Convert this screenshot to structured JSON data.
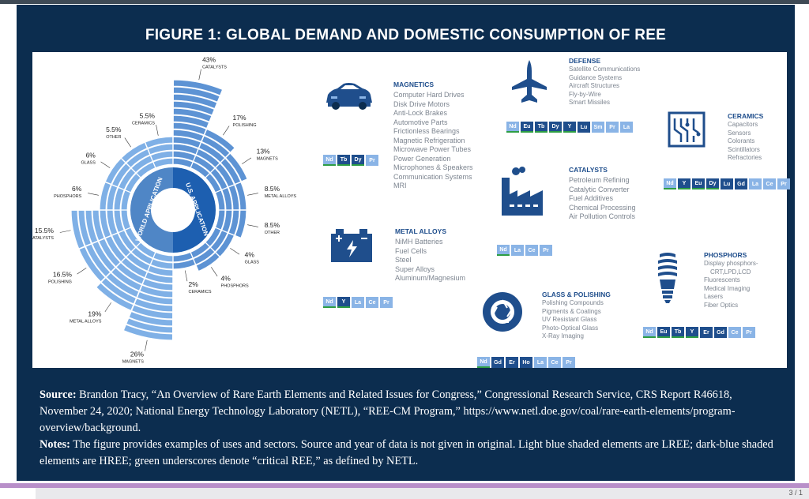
{
  "title": "FIGURE 1: GLOBAL DEMAND AND DOMESTIC CONSUMPTION OF REE",
  "ring": {
    "world_label": "WORLD APPLICATION",
    "us_label": "U.S. APPLICATION",
    "world": [
      {
        "pct": "26%",
        "name": "MAGNETS",
        "value": 26
      },
      {
        "pct": "19%",
        "name": "METAL ALLOYS",
        "value": 19
      },
      {
        "pct": "16.5%",
        "name": "POLISHING",
        "value": 16.5
      },
      {
        "pct": "15.5%",
        "name": "CATALYSTS",
        "value": 15.5
      },
      {
        "pct": "6%",
        "name": "PHOSPHORS",
        "value": 6
      },
      {
        "pct": "6%",
        "name": "GLASS",
        "value": 6
      },
      {
        "pct": "5.5%",
        "name": "OTHER",
        "value": 5.5
      },
      {
        "pct": "5.5%",
        "name": "CERAMICS",
        "value": 5.5
      }
    ],
    "us": [
      {
        "pct": "43%",
        "name": "CATALYSTS",
        "value": 43
      },
      {
        "pct": "17%",
        "name": "POLISHING",
        "value": 17
      },
      {
        "pct": "13%",
        "name": "MAGNETS",
        "value": 13
      },
      {
        "pct": "8.5%",
        "name": "METAL ALLOYS",
        "value": 8.5
      },
      {
        "pct": "8.5%",
        "name": "OTHER",
        "value": 8.5
      },
      {
        "pct": "4%",
        "name": "GLASS",
        "value": 4
      },
      {
        "pct": "4%",
        "name": "PHOSPHORS",
        "value": 4
      },
      {
        "pct": "2%",
        "name": "CERAMICS",
        "value": 2
      }
    ]
  },
  "sections": {
    "magnetics": {
      "title": "MAGNETICS",
      "items": [
        "Computer Hard Drives",
        "Disk Drive Motors",
        "Anti-Lock Brakes",
        "Automotive Parts",
        "Frictionless Bearings",
        "Magnetic Refrigeration",
        "Microwave Power Tubes",
        "Power Generation",
        "Microphones & Speakers",
        "Communication Systems",
        "MRI"
      ],
      "elements": [
        "Nd",
        "Tb",
        "Dy",
        "Pr"
      ]
    },
    "metal_alloys": {
      "title": "METAL ALLOYS",
      "items": [
        "NiMH Batteries",
        "Fuel Cells",
        "Steel",
        "Super Alloys",
        "Aluminum/Magnesium"
      ],
      "elements": [
        "Nd",
        "Y",
        "La",
        "Ce",
        "Pr"
      ]
    },
    "defense": {
      "title": "DEFENSE",
      "items": [
        "Satellite Communications",
        "Guidance Systems",
        "Aircraft Structures",
        "Fly-by-Wire",
        "Smart Missiles"
      ],
      "elements": [
        "Nd",
        "Eu",
        "Tb",
        "Dy",
        "Y",
        "Lu",
        "Sm",
        "Pr",
        "La"
      ]
    },
    "catalysts": {
      "title": "CATALYSTS",
      "items": [
        "Petroleum Refining",
        "Catalytic Converter",
        "Fuel Additives",
        "Chemical Processing",
        "Air Pollution Controls"
      ],
      "elements": [
        "Nd",
        "La",
        "Ce",
        "Pr"
      ]
    },
    "glass": {
      "title": "GLASS & POLISHING",
      "items": [
        "Polishing Compounds",
        "Pigments & Coatings",
        "UV Resistant Glass",
        "Photo-Optical Glass",
        "X-Ray Imaging"
      ],
      "elements": [
        "Nd",
        "Gd",
        "Er",
        "Ho",
        "La",
        "Ce",
        "Pr"
      ]
    },
    "ceramics": {
      "title": "CERAMICS",
      "items": [
        "Capacitors",
        "Sensors",
        "Colorants",
        "Scintillators",
        "Refractories"
      ],
      "elements": [
        "Nd",
        "Y",
        "Eu",
        "Dy",
        "Lu",
        "Gd",
        "La",
        "Ce",
        "Pr"
      ]
    },
    "phosphors": {
      "title": "PHOSPHORS",
      "items": [
        "Display phosphors-",
        "CRT,LPD,LCD",
        "Fluorescents",
        "Medical Imaging",
        "Lasers",
        "Fiber Optics"
      ],
      "elements": [
        "Nd",
        "Eu",
        "Tb",
        "Y",
        "Er",
        "Gd",
        "Ce",
        "Pr"
      ]
    }
  },
  "element_classes": {
    "hree": [
      "Tb",
      "Dy",
      "Y",
      "Lu",
      "Gd",
      "Er",
      "Ho",
      "Eu"
    ],
    "critical": [
      "Nd",
      "Tb",
      "Dy",
      "Eu",
      "Y"
    ]
  },
  "colors": {
    "frame": "#0c2d4f",
    "hree": "#1f4e8c",
    "lree": "#8ab4e6",
    "critical_underline": "#2e9e44",
    "ring_light": "#6fa3dd",
    "ring_dark": "#1d5fb0"
  },
  "caption": {
    "source_label": "Source:",
    "source_text": " Brandon Tracy, “An Overview of Rare Earth Elements and Related Issues for Congress,” Congressional Research Service, CRS Report R46618, November 24, 2020; National Energy Technology Laboratory (NETL), “REE-CM Program,” https://www.netl.doe.gov/coal/rare-earth-elements/program-overview/background.",
    "notes_label": "Notes:",
    "notes_text": " The figure provides examples of uses and sectors. Source and year of data is not given in original. Light blue shaded elements are LREE; dark-blue shaded elements are HREE; green underscores denote “critical REE,” as defined by NETL."
  },
  "page_marker": "3 / 1"
}
